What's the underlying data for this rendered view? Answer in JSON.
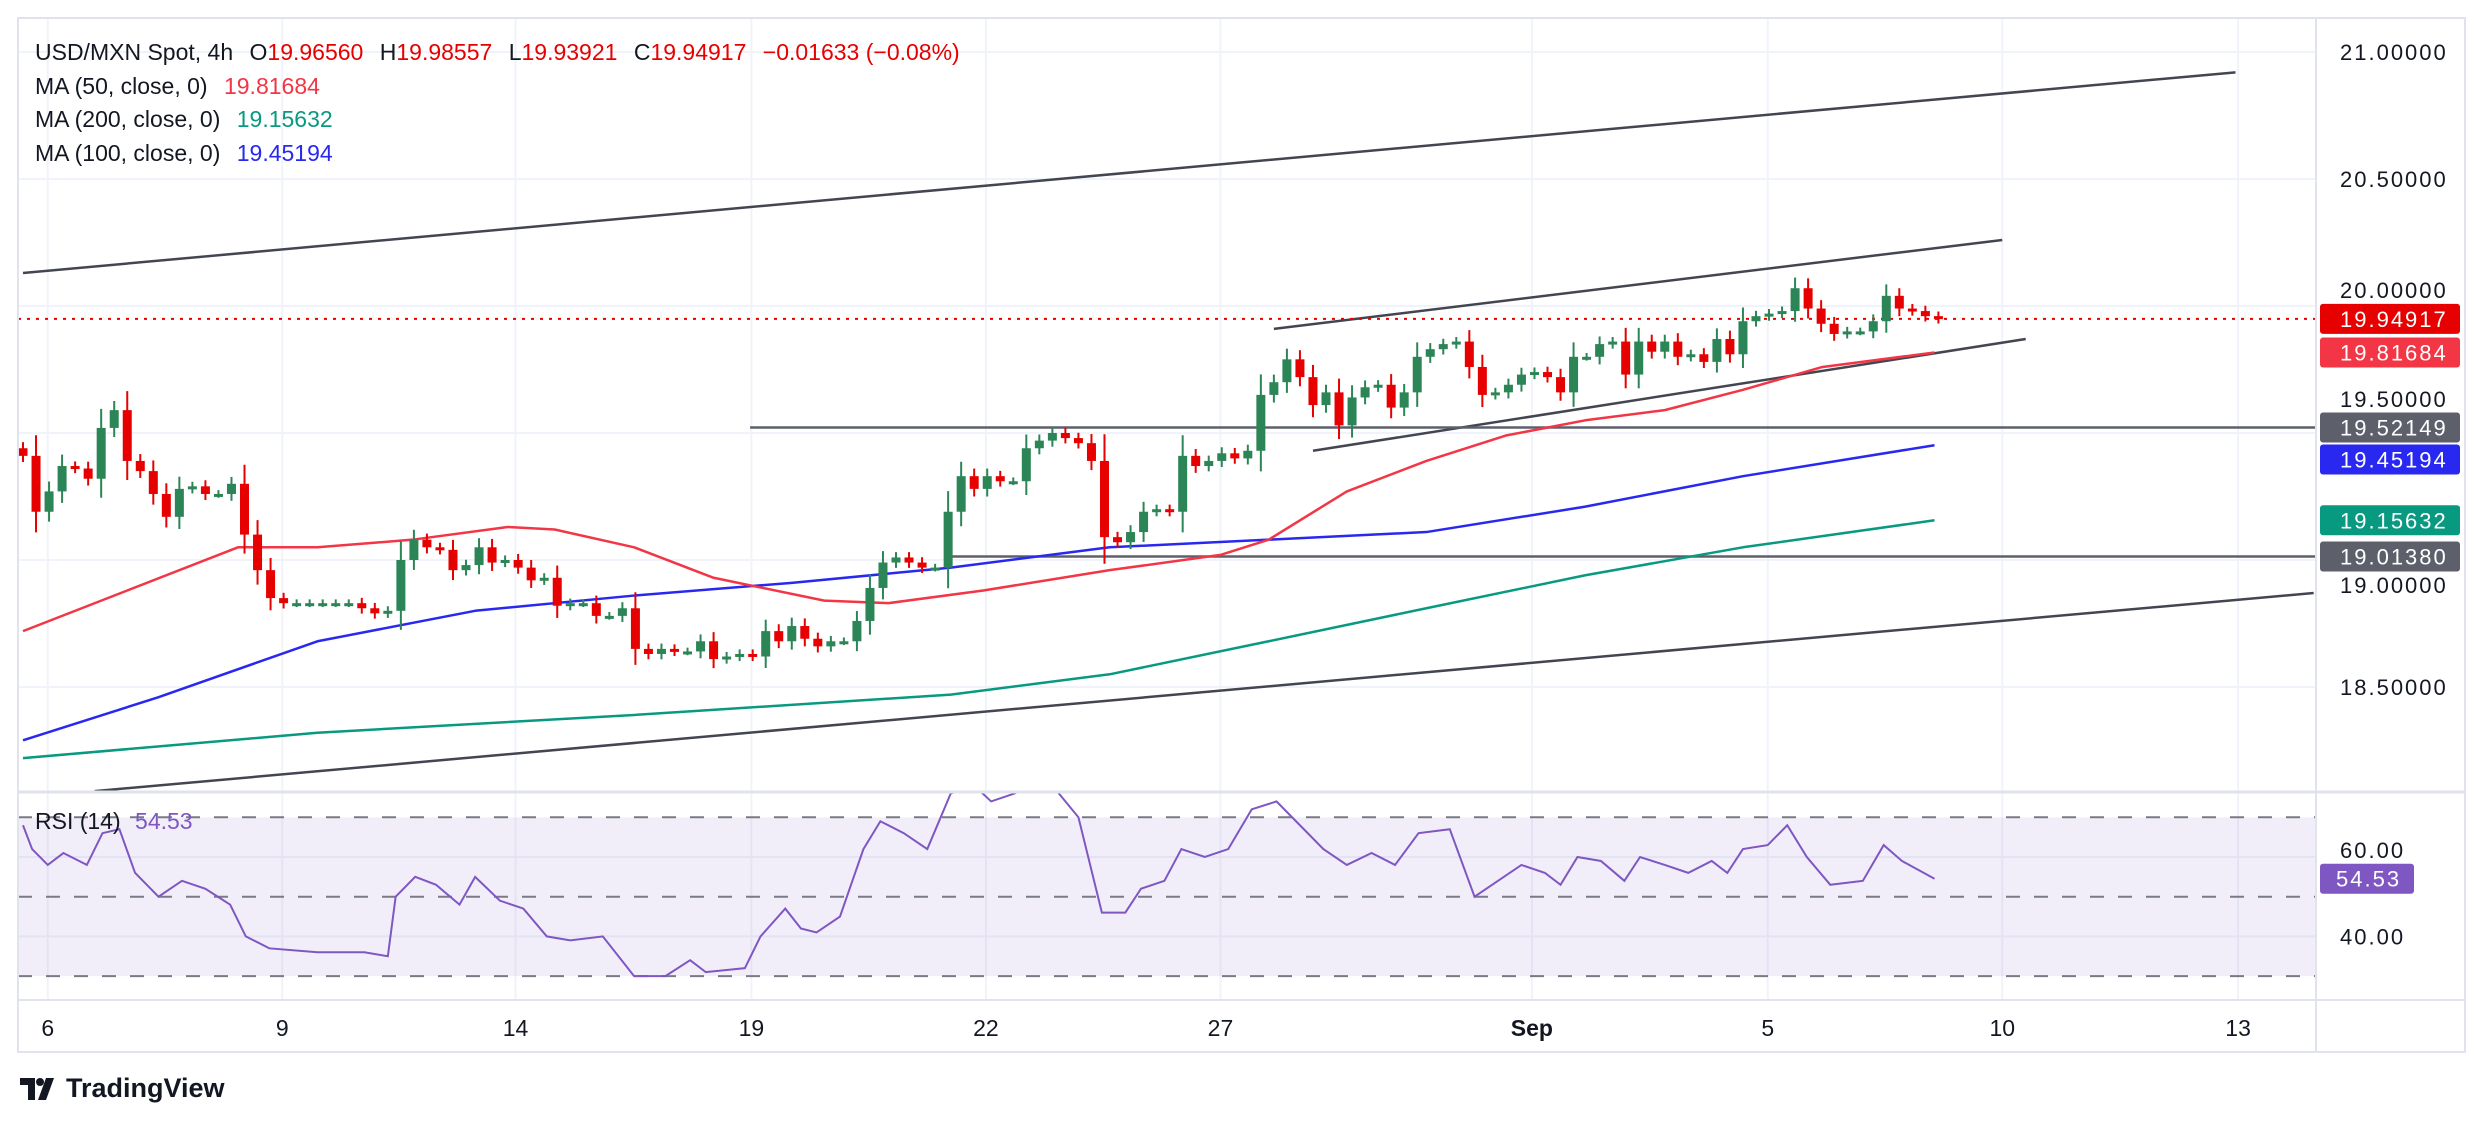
{
  "legend": {
    "symbol": "USD/MXN Spot, 4h",
    "o_label": "O",
    "open": "19.96560",
    "h_label": "H",
    "high": "19.98557",
    "l_label": "L",
    "low": "19.93921",
    "c_label": "C",
    "close": "19.94917",
    "change": "−0.01633 (−0.08%)",
    "ma50_label": "MA (50, close, 0)",
    "ma50_value": "19.81684",
    "ma200_label": "MA (200, close, 0)",
    "ma200_value": "19.15632",
    "ma100_label": "MA (100, close, 0)",
    "ma100_value": "19.45194",
    "rsi_label": "RSI (14)",
    "rsi_value": "54.53"
  },
  "branding": {
    "logo_text": "TradingView"
  },
  "colors": {
    "up": "#2b8556",
    "down": "#e60000",
    "last_price": "#e60000",
    "ma50": "#f23645",
    "ma100": "#2828f0",
    "ma200": "#089981",
    "rsi": "#7e57c2",
    "trendline": "#434651",
    "hline": "#5d606b"
  },
  "chart_data": {
    "type": "candlestick",
    "timeframe": "4h",
    "first_open": 19.44,
    "closes": [
      19.41,
      19.19,
      19.27,
      19.37,
      19.36,
      19.32,
      19.52,
      19.59,
      19.39,
      19.35,
      19.26,
      19.17,
      19.28,
      19.29,
      19.26,
      19.26,
      19.3,
      19.1,
      18.96,
      18.85,
      18.83,
      18.83,
      18.83,
      18.83,
      18.83,
      18.83,
      18.81,
      18.79,
      18.8,
      19.0,
      19.08,
      19.05,
      19.04,
      18.96,
      18.98,
      19.05,
      18.99,
      19.0,
      18.97,
      18.92,
      18.93,
      18.82,
      18.83,
      18.83,
      18.78,
      18.78,
      18.81,
      18.65,
      18.63,
      18.65,
      18.64,
      18.64,
      18.68,
      18.61,
      18.62,
      18.63,
      18.62,
      18.72,
      18.68,
      18.74,
      18.69,
      18.66,
      18.68,
      18.68,
      18.76,
      18.89,
      18.99,
      19.01,
      18.99,
      18.97,
      18.97,
      19.19,
      19.33,
      19.28,
      19.33,
      19.31,
      19.31,
      19.44,
      19.47,
      19.5,
      19.48,
      19.46,
      19.39,
      19.09,
      19.07,
      19.11,
      19.19,
      19.2,
      19.19,
      19.41,
      19.37,
      19.39,
      19.42,
      19.4,
      19.43,
      19.65,
      19.7,
      19.79,
      19.72,
      19.61,
      19.66,
      19.53,
      19.64,
      19.68,
      19.69,
      19.6,
      19.66,
      19.8,
      19.83,
      19.85,
      19.86,
      19.76,
      19.65,
      19.66,
      19.69,
      19.73,
      19.74,
      19.72,
      19.66,
      19.8,
      19.8,
      19.85,
      19.86,
      19.73,
      19.86,
      19.82,
      19.86,
      19.8,
      19.81,
      19.78,
      19.87,
      19.81,
      19.94,
      19.96,
      19.97,
      19.98,
      20.07,
      19.99,
      19.93,
      19.89,
      19.9,
      19.9,
      19.94,
      20.04,
      19.99,
      19.98,
      19.96,
      19.94917
    ],
    "ma50": [
      [
        0,
        18.72
      ],
      [
        8,
        18.88
      ],
      [
        16.5,
        19.05
      ],
      [
        22.6,
        19.05
      ],
      [
        29.9,
        19.08
      ],
      [
        37.2,
        19.13
      ],
      [
        40.8,
        19.12
      ],
      [
        46.9,
        19.05
      ],
      [
        53,
        18.93
      ],
      [
        61.5,
        18.84
      ],
      [
        66.4,
        18.83
      ],
      [
        73.7,
        18.88
      ],
      [
        83.4,
        18.96
      ],
      [
        91.9,
        19.02
      ],
      [
        95.6,
        19.08
      ],
      [
        101.6,
        19.27
      ],
      [
        107.7,
        19.39
      ],
      [
        113.8,
        19.49
      ],
      [
        119.9,
        19.55
      ],
      [
        126,
        19.59
      ],
      [
        132,
        19.67
      ],
      [
        138.1,
        19.76
      ],
      [
        146.7,
        19.81684
      ]
    ],
    "ma100": [
      [
        0,
        18.29
      ],
      [
        10.4,
        18.46
      ],
      [
        22.6,
        18.68
      ],
      [
        34.7,
        18.8
      ],
      [
        46.9,
        18.86
      ],
      [
        59,
        18.91
      ],
      [
        71.2,
        18.97
      ],
      [
        83.4,
        19.05
      ],
      [
        95.6,
        19.08
      ],
      [
        107.7,
        19.11
      ],
      [
        119.9,
        19.21
      ],
      [
        132,
        19.33
      ],
      [
        146.7,
        19.45194
      ]
    ],
    "ma200": [
      [
        0,
        18.22
      ],
      [
        22.6,
        18.32
      ],
      [
        46.9,
        18.39
      ],
      [
        71.2,
        18.47
      ],
      [
        83.4,
        18.55
      ],
      [
        95.6,
        18.68
      ],
      [
        107.7,
        18.81
      ],
      [
        119.9,
        18.94
      ],
      [
        132,
        19.05
      ],
      [
        146.7,
        19.15632
      ]
    ],
    "trendlines": [
      [
        [
          0,
          20.13
        ],
        [
          169.8,
          20.92
        ]
      ],
      [
        [
          5.5,
          18.09
        ],
        [
          175.8,
          18.87
        ]
      ],
      [
        [
          96,
          19.91
        ],
        [
          151.9,
          20.26
        ]
      ],
      [
        [
          99,
          19.43
        ],
        [
          153.7,
          19.87
        ]
      ]
    ],
    "hlines": [
      {
        "from": 55.8,
        "price": 19.52149
      },
      {
        "from": 71.2,
        "price": 19.0138
      }
    ],
    "rsi": [
      [
        0,
        68
      ],
      [
        0.7,
        62
      ],
      [
        1.9,
        58
      ],
      [
        3.1,
        61
      ],
      [
        4.9,
        58
      ],
      [
        6.1,
        66
      ],
      [
        7.4,
        67
      ],
      [
        8.6,
        56
      ],
      [
        10.4,
        50
      ],
      [
        12.2,
        54
      ],
      [
        14,
        52
      ],
      [
        15.9,
        48
      ],
      [
        17.1,
        40
      ],
      [
        18.9,
        37
      ],
      [
        22.6,
        36
      ],
      [
        26.2,
        36
      ],
      [
        28,
        35
      ],
      [
        28.6,
        50
      ],
      [
        30.1,
        55
      ],
      [
        31.7,
        53
      ],
      [
        33.5,
        48
      ],
      [
        34.7,
        55
      ],
      [
        36.6,
        49
      ],
      [
        38.4,
        47
      ],
      [
        40.2,
        40
      ],
      [
        42,
        39
      ],
      [
        44.5,
        40
      ],
      [
        46.9,
        30
      ],
      [
        49.3,
        30
      ],
      [
        51.2,
        34
      ],
      [
        52.4,
        31
      ],
      [
        55.4,
        32
      ],
      [
        56.6,
        40
      ],
      [
        58.5,
        47
      ],
      [
        59.7,
        42
      ],
      [
        60.9,
        41
      ],
      [
        62.7,
        45
      ],
      [
        64.5,
        62
      ],
      [
        65.8,
        69
      ],
      [
        67.6,
        66
      ],
      [
        69.4,
        62
      ],
      [
        71.2,
        76
      ],
      [
        73,
        78
      ],
      [
        74.3,
        74
      ],
      [
        76.1,
        76
      ],
      [
        78.5,
        80
      ],
      [
        81,
        70
      ],
      [
        82.8,
        46
      ],
      [
        84.6,
        46
      ],
      [
        85.8,
        52
      ],
      [
        87.6,
        54
      ],
      [
        88.9,
        62
      ],
      [
        90.7,
        60
      ],
      [
        92.5,
        62
      ],
      [
        94.3,
        72
      ],
      [
        96.2,
        74
      ],
      [
        98,
        68
      ],
      [
        99.8,
        62
      ],
      [
        101.6,
        58
      ],
      [
        103.5,
        61
      ],
      [
        105.3,
        58
      ],
      [
        107.1,
        66
      ],
      [
        109.5,
        67
      ],
      [
        111.4,
        50
      ],
      [
        115,
        58
      ],
      [
        116.8,
        56
      ],
      [
        118,
        53
      ],
      [
        119.3,
        60
      ],
      [
        121.1,
        59
      ],
      [
        122.9,
        54
      ],
      [
        124.1,
        60
      ],
      [
        126,
        58
      ],
      [
        127.8,
        56
      ],
      [
        129.6,
        59
      ],
      [
        130.8,
        56
      ],
      [
        132,
        62
      ],
      [
        133.9,
        63
      ],
      [
        135.4,
        68
      ],
      [
        136.9,
        60
      ],
      [
        138.7,
        53
      ],
      [
        141.2,
        54
      ],
      [
        142.8,
        63
      ],
      [
        144.2,
        59
      ],
      [
        146.7,
        54.53
      ]
    ],
    "rsi_levels": [
      70,
      50,
      30
    ],
    "price_ticks": [
      "21.00000",
      "20.50000",
      "20.00000",
      "19.50000",
      "19.00000",
      "18.50000"
    ],
    "rsi_ticks": [
      "60.00",
      "40.00"
    ],
    "price_labels": [
      {
        "text": "19.94917",
        "price": 19.94917,
        "color": "#e60000"
      },
      {
        "text": "19.81684",
        "price": 19.81684,
        "color": "#f23645"
      },
      {
        "text": "19.52149",
        "price": 19.52149,
        "color": "#5d606b"
      },
      {
        "text": "19.45194",
        "price": 19.45194,
        "color": "#2828f0"
      },
      {
        "text": "19.15632",
        "price": 19.15632,
        "color": "#089981"
      },
      {
        "text": "19.01380",
        "price": 19.0138,
        "color": "#5d606b"
      }
    ],
    "rsi_label": {
      "text": "54.53",
      "value": 54.53,
      "color": "#7e57c2"
    },
    "x_ticks": [
      {
        "label": "6",
        "index": 1.9
      },
      {
        "label": "9",
        "index": 19.9
      },
      {
        "label": "14",
        "index": 37.8
      },
      {
        "label": "19",
        "index": 55.9
      },
      {
        "label": "22",
        "index": 73.9
      },
      {
        "label": "27",
        "index": 91.9
      },
      {
        "label": "Sep",
        "index": 115.8,
        "bold": true
      },
      {
        "label": "5",
        "index": 133.9
      },
      {
        "label": "10",
        "index": 151.9
      },
      {
        "label": "13",
        "index": 170
      }
    ],
    "grid": true
  }
}
